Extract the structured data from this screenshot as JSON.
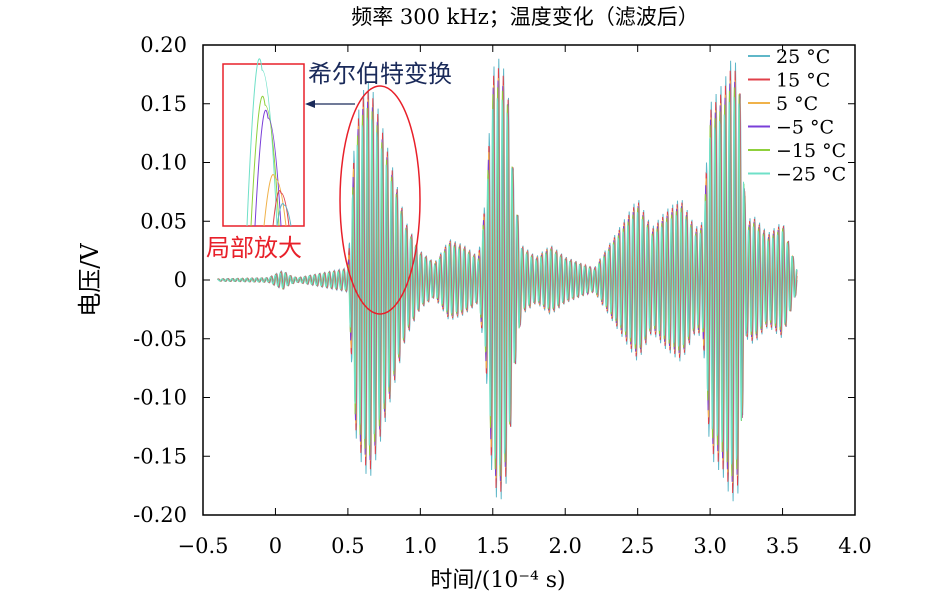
{
  "chart_data": {
    "type": "line",
    "title": "频率 300 kHz；温度变化（滤波后）",
    "xlabel": "时间/(10⁻⁴ s)",
    "ylabel": "电压/V",
    "xlim": [
      -0.5,
      4.0
    ],
    "ylim": [
      -0.2,
      0.2
    ],
    "xticks": [
      -0.5,
      0,
      0.5,
      1.0,
      1.5,
      2.0,
      2.5,
      3.0,
      3.5,
      4.0
    ],
    "xtick_labels": [
      "−0.5",
      "0",
      "0.5",
      "1.0",
      "1.5",
      "2.0",
      "2.5",
      "3.0",
      "3.5",
      "4.0"
    ],
    "yticks": [
      0.2,
      0.15,
      0.1,
      0.05,
      0,
      -0.05,
      -0.1,
      -0.15,
      -0.2
    ],
    "ytick_labels": [
      "0.20",
      "0.15",
      "0.10",
      "0.05",
      "0",
      "-0.05",
      "-0.10",
      "-0.15",
      "-0.20"
    ],
    "grid": false,
    "legend_position": "top-right",
    "signal_frequency_kHz": 300,
    "time_span": [
      -0.4,
      3.6
    ],
    "envelope": {
      "t": [
        -0.4,
        -0.05,
        0.05,
        0.1,
        0.15,
        0.5,
        0.55,
        0.6,
        0.65,
        0.7,
        0.8,
        0.9,
        1.0,
        1.1,
        1.2,
        1.3,
        1.4,
        1.45,
        1.5,
        1.55,
        1.6,
        1.65,
        1.7,
        1.8,
        1.9,
        2.0,
        2.1,
        2.2,
        2.3,
        2.4,
        2.5,
        2.6,
        2.7,
        2.8,
        2.9,
        2.95,
        3.0,
        3.1,
        3.15,
        3.2,
        3.25,
        3.3,
        3.4,
        3.5,
        3.6
      ],
      "amp": [
        0.001,
        0.002,
        0.008,
        0.004,
        0.002,
        0.01,
        0.13,
        0.16,
        0.17,
        0.15,
        0.1,
        0.05,
        0.025,
        0.015,
        0.035,
        0.03,
        0.02,
        0.07,
        0.18,
        0.19,
        0.17,
        0.08,
        0.03,
        0.02,
        0.03,
        0.02,
        0.015,
        0.01,
        0.03,
        0.05,
        0.07,
        0.045,
        0.06,
        0.07,
        0.045,
        0.05,
        0.15,
        0.17,
        0.19,
        0.18,
        0.05,
        0.055,
        0.04,
        0.05,
        0.01
      ]
    },
    "series": [
      {
        "name": "25 °C",
        "color": "#5fb7c8",
        "phase_shift": 0.0
      },
      {
        "name": "15 °C",
        "color": "#e0404a",
        "phase_shift": 0.002
      },
      {
        "name": "5 °C",
        "color": "#f0b24a",
        "phase_shift": 0.004
      },
      {
        "name": "−5 °C",
        "color": "#7a3fd8",
        "phase_shift": 0.006
      },
      {
        "name": "−15 °C",
        "color": "#8fd03c",
        "phase_shift": 0.008
      },
      {
        "name": "−25 °C",
        "color": "#6fe0c8",
        "phase_shift": 0.01
      }
    ],
    "annotations": {
      "hilbert_label": "希尔伯特变换",
      "zoom_label": "局部放大",
      "hilbert_color": "#1a2a5a",
      "zoom_color": "#e8202a"
    }
  }
}
